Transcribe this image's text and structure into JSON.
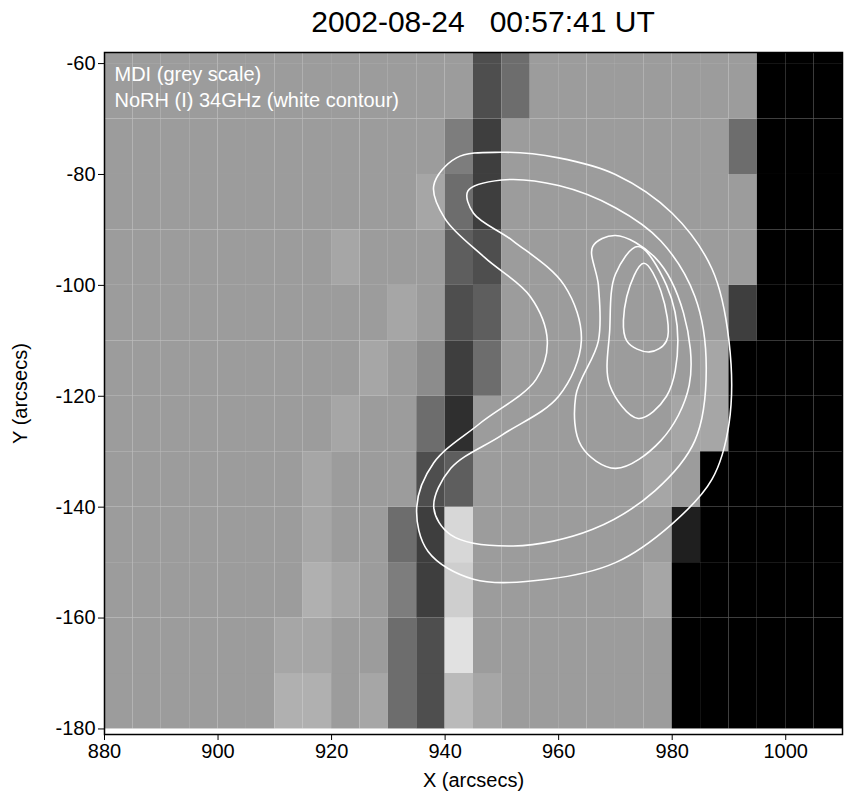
{
  "chart_data": {
    "type": "heatmap",
    "title": "2002-08-24   00:57:41 UT",
    "annotations": [
      "MDI (grey scale)",
      "NoRH (I) 34GHz (white contour)"
    ],
    "x_label": "X (arcsecs)",
    "y_label": "Y (arcsecs)",
    "xlim": [
      880,
      1010
    ],
    "ylim": [
      -181,
      -58
    ],
    "xticks": [
      880,
      900,
      920,
      940,
      960,
      980,
      1000
    ],
    "yticks": [
      -180,
      -160,
      -140,
      -120,
      -100,
      -80,
      -60
    ],
    "grid": false,
    "color_range": [
      -1,
      1
    ],
    "x_edges": [
      880,
      885,
      890,
      895,
      900,
      905,
      910,
      915,
      920,
      925,
      930,
      935,
      940,
      945,
      950,
      955,
      960,
      965,
      970,
      975,
      980,
      985,
      990,
      995,
      1000,
      1005,
      1010
    ],
    "y_edges": [
      -180,
      -170,
      -160,
      -150,
      -140,
      -130,
      -120,
      -110,
      -100,
      -90,
      -80,
      -70,
      -60,
      -50
    ],
    "cells": [
      [
        0,
        0,
        0,
        0,
        0,
        0,
        0.2,
        0.2,
        0,
        0.1,
        -0.3,
        -0.5,
        0.3,
        0.1,
        0,
        0,
        0,
        0,
        0,
        0,
        -1,
        -1,
        -1,
        -1,
        -1,
        -1
      ],
      [
        0,
        0,
        0,
        0,
        0,
        0,
        0.1,
        0.1,
        0,
        0,
        -0.3,
        -0.5,
        0.7,
        0,
        0,
        0,
        0,
        0,
        0,
        0,
        -1,
        -1,
        -1,
        -1,
        -1,
        -1
      ],
      [
        0,
        0,
        0,
        0,
        0,
        0,
        0,
        0.2,
        0.1,
        0,
        -0.2,
        -0.6,
        0.5,
        0,
        0,
        0,
        0,
        0,
        0,
        0.1,
        -1,
        -1,
        -1,
        -1,
        -1,
        -1
      ],
      [
        0,
        0,
        0,
        0,
        0,
        0,
        0,
        0.1,
        0,
        0,
        -0.3,
        -0.6,
        0.6,
        0,
        0,
        0,
        0,
        0,
        0,
        0,
        -0.8,
        -1,
        -1,
        -1,
        -1,
        -1
      ],
      [
        0,
        0,
        0,
        0,
        0,
        0,
        0,
        0.1,
        0,
        0,
        0,
        -0.5,
        -0.4,
        0,
        0,
        0,
        0,
        0,
        0,
        0.1,
        0,
        -1,
        -1,
        -1,
        -1,
        -1
      ],
      [
        0,
        0,
        0,
        0,
        0,
        0,
        0,
        0,
        0.1,
        0,
        0,
        -0.3,
        -0.7,
        0,
        0,
        0,
        0,
        0,
        0,
        0,
        0.1,
        0.1,
        -1,
        -1,
        -1,
        -1
      ],
      [
        0,
        0,
        0,
        0,
        0,
        0,
        0,
        0,
        0,
        0.1,
        0,
        -0.1,
        -0.6,
        -0.3,
        0,
        0,
        0,
        0,
        0,
        0,
        0,
        0.1,
        -1,
        -1,
        -1,
        -1
      ],
      [
        0,
        0,
        0,
        0,
        0,
        0,
        0,
        0,
        0,
        0,
        0.1,
        0,
        -0.5,
        -0.4,
        0,
        0,
        0,
        0,
        0,
        0,
        0,
        0,
        -0.6,
        -1,
        -1,
        -1
      ],
      [
        0,
        0,
        0,
        0,
        0,
        0,
        0,
        0,
        0.1,
        0,
        0,
        0,
        -0.4,
        -0.5,
        0,
        0,
        0,
        0,
        0,
        0,
        0,
        0,
        0,
        -1,
        -1,
        -1
      ],
      [
        0,
        0,
        0,
        0,
        0,
        0,
        0,
        0,
        0,
        0,
        0,
        0.1,
        -0.3,
        -0.6,
        0,
        0,
        0,
        0,
        0,
        0,
        0,
        0,
        0,
        -1,
        -1,
        -1
      ],
      [
        0,
        0,
        0,
        0,
        0,
        0,
        0,
        0,
        0,
        0,
        0,
        0,
        -0.2,
        -0.6,
        0,
        0,
        0,
        0,
        0,
        0,
        0,
        0,
        -0.3,
        -1,
        -1,
        -1
      ],
      [
        0,
        0,
        0,
        0,
        0,
        0,
        0,
        0,
        0,
        0,
        0,
        0,
        0,
        -0.5,
        -0.3,
        0,
        0,
        0,
        0,
        0,
        0,
        0,
        0,
        -1,
        -1,
        -1
      ],
      [
        0,
        0,
        0,
        0,
        0,
        0,
        0,
        0,
        0,
        0,
        0,
        0,
        0,
        -0.5,
        -0.3,
        0,
        0,
        0,
        0,
        0,
        0,
        0,
        0,
        -1,
        -1,
        -1
      ]
    ],
    "contours": [
      [
        [
          950,
          -76
        ],
        [
          960,
          -77
        ],
        [
          970,
          -80
        ],
        [
          980,
          -87
        ],
        [
          987,
          -97
        ],
        [
          990,
          -110
        ],
        [
          990,
          -125
        ],
        [
          987,
          -135
        ],
        [
          980,
          -143
        ],
        [
          970,
          -150
        ],
        [
          958,
          -153
        ],
        [
          945,
          -153
        ],
        [
          937,
          -148
        ],
        [
          935,
          -140
        ],
        [
          938,
          -132
        ],
        [
          946,
          -125
        ],
        [
          956,
          -117
        ],
        [
          958,
          -110
        ],
        [
          955,
          -102
        ],
        [
          947,
          -95
        ],
        [
          940,
          -88
        ],
        [
          938,
          -82
        ],
        [
          942,
          -77
        ]
      ],
      [
        [
          950,
          -81
        ],
        [
          960,
          -82
        ],
        [
          970,
          -86
        ],
        [
          978,
          -92
        ],
        [
          984,
          -102
        ],
        [
          986,
          -115
        ],
        [
          984,
          -128
        ],
        [
          977,
          -137
        ],
        [
          966,
          -144
        ],
        [
          952,
          -147
        ],
        [
          941,
          -145
        ],
        [
          938,
          -140
        ],
        [
          941,
          -133
        ],
        [
          950,
          -127
        ],
        [
          960,
          -120
        ],
        [
          964,
          -110
        ],
        [
          961,
          -100
        ],
        [
          952,
          -92
        ],
        [
          945,
          -87
        ],
        [
          944,
          -83
        ]
      ],
      [
        [
          970,
          -91
        ],
        [
          977,
          -95
        ],
        [
          982,
          -105
        ],
        [
          983,
          -118
        ],
        [
          978,
          -128
        ],
        [
          970,
          -133
        ],
        [
          964,
          -129
        ],
        [
          963,
          -120
        ],
        [
          967,
          -110
        ],
        [
          967,
          -100
        ],
        [
          966,
          -93
        ]
      ],
      [
        [
          974,
          -93
        ],
        [
          979,
          -100
        ],
        [
          981,
          -110
        ],
        [
          979,
          -120
        ],
        [
          974,
          -124
        ],
        [
          969,
          -118
        ],
        [
          969,
          -108
        ],
        [
          970,
          -98
        ]
      ],
      [
        [
          975,
          -96
        ],
        [
          978,
          -101
        ],
        [
          979,
          -110
        ],
        [
          976,
          -112
        ],
        [
          972,
          -110
        ],
        [
          972,
          -102
        ]
      ]
    ],
    "contour_color": "#ffffff"
  }
}
